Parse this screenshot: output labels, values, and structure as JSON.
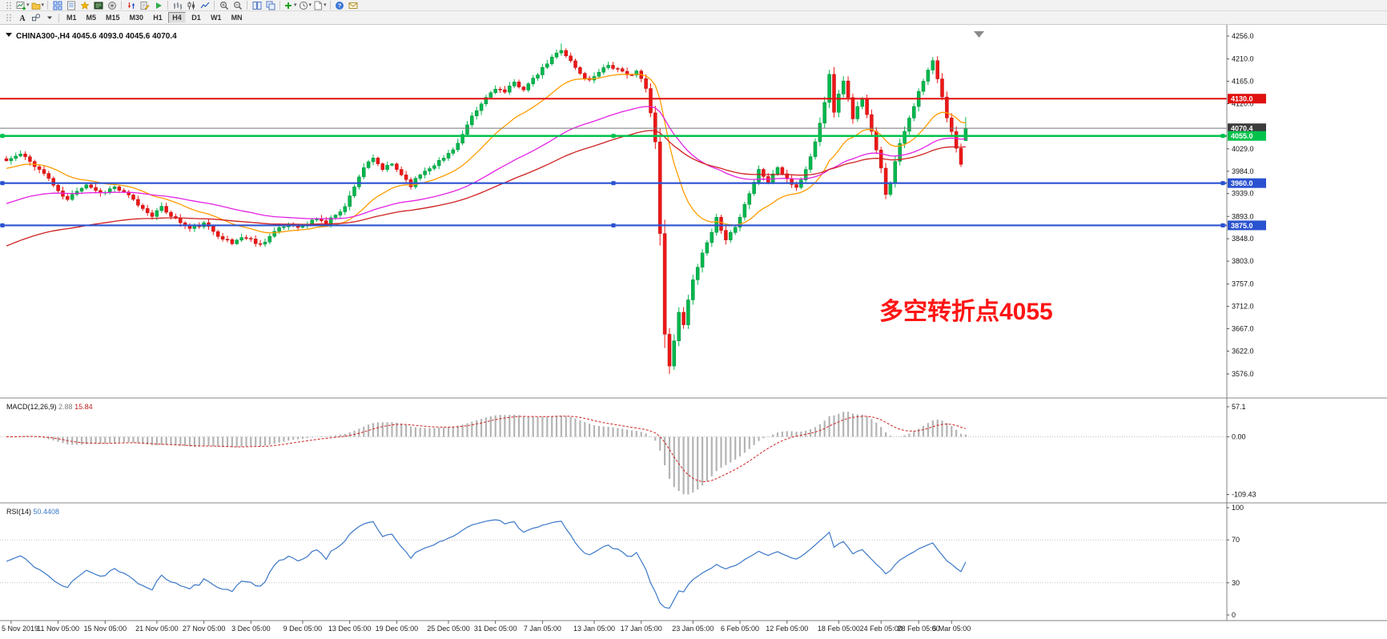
{
  "toolbar_main": {
    "buttons": [
      {
        "name": "toolbar-grip",
        "icon": "grip"
      },
      {
        "name": "new-chart",
        "icon": "chart-plus",
        "dropdown": true
      },
      {
        "name": "profiles",
        "icon": "folder",
        "dropdown": true
      },
      {
        "type": "sep"
      },
      {
        "name": "market-watch",
        "icon": "grid"
      },
      {
        "name": "data-window",
        "icon": "data-window"
      },
      {
        "name": "navigator",
        "icon": "star"
      },
      {
        "name": "terminal",
        "icon": "terminal"
      },
      {
        "name": "strategy-tester",
        "icon": "tester"
      },
      {
        "type": "sep"
      },
      {
        "name": "new-order",
        "icon": "order"
      },
      {
        "name": "metaeditor",
        "icon": "editor"
      },
      {
        "name": "auto-trading",
        "icon": "play"
      },
      {
        "type": "sep"
      },
      {
        "name": "bar-chart-mode",
        "icon": "bars"
      },
      {
        "name": "candlestick-chart-mode",
        "icon": "candles"
      },
      {
        "name": "line-chart-mode",
        "icon": "line"
      },
      {
        "type": "sep"
      },
      {
        "name": "zoom-in",
        "icon": "zoom-in"
      },
      {
        "name": "zoom-out",
        "icon": "zoom-out"
      },
      {
        "type": "sep"
      },
      {
        "name": "tile-windows",
        "icon": "tile"
      },
      {
        "name": "cascade-windows",
        "icon": "cascade"
      },
      {
        "type": "sep"
      },
      {
        "name": "indicators",
        "icon": "plus",
        "dropdown": true
      },
      {
        "name": "periods",
        "icon": "clock",
        "dropdown": true
      },
      {
        "name": "templates",
        "icon": "template",
        "dropdown": true
      },
      {
        "type": "sep"
      },
      {
        "name": "help",
        "icon": "help"
      },
      {
        "name": "feedback",
        "icon": "mail"
      }
    ]
  },
  "toolbar_timeframes": {
    "tools": [
      {
        "name": "toolbar2-grip",
        "icon": "grip"
      },
      {
        "name": "text-label-tool",
        "icon": "text"
      },
      {
        "name": "draw-objects-tool",
        "icon": "shapes"
      },
      {
        "name": "tools-menu",
        "icon": "dropdown"
      }
    ],
    "timeframes": [
      "M1",
      "M5",
      "M15",
      "M30",
      "H1",
      "H4",
      "D1",
      "W1",
      "MN"
    ],
    "active": "H4"
  },
  "chart": {
    "title": {
      "symbol_period": "CHINA300-,H4",
      "ohlc": "4045.6 4093.0 4045.6 4070.4"
    },
    "annotation": {
      "text": "多空转折点4055",
      "color": "#ff1414"
    },
    "levels": [
      {
        "name": "resistance-line",
        "price": 4130.0,
        "label": "4130.0",
        "color": "#e01010",
        "width": 2,
        "badge_bg": "#e01010",
        "handles": false
      },
      {
        "name": "current-price-line",
        "price": 4070.4,
        "label": "4070.4",
        "color": "#787878",
        "width": 1,
        "badge_bg": "#3c3c3c",
        "handles": false
      },
      {
        "name": "pivot-line",
        "price": 4055.0,
        "label": "4055.0",
        "color": "#00c24b",
        "width": 2.4,
        "badge_bg": "#00c24b",
        "handles": true
      },
      {
        "name": "support-line-1",
        "price": 3960.0,
        "label": "3960.0",
        "color": "#2a52d0",
        "width": 2.2,
        "badge_bg": "#2a52d0",
        "handles": true
      },
      {
        "name": "support-line-2",
        "price": 3875.0,
        "label": "3875.0",
        "color": "#2a52d0",
        "width": 2.2,
        "badge_bg": "#2a52d0",
        "handles": true
      }
    ],
    "price_axis": [
      {
        "text": "4256.0",
        "price": 4256.0
      },
      {
        "text": "4210.0",
        "price": 4210.0
      },
      {
        "text": "4165.0",
        "price": 4165.0
      },
      {
        "text": "4120.0",
        "price": 4120.0
      },
      {
        "text": "4029.0",
        "price": 4029.0
      },
      {
        "text": "3984.0",
        "price": 3984.0
      },
      {
        "text": "3939.0",
        "price": 3939.0
      },
      {
        "text": "3893.0",
        "price": 3893.0
      },
      {
        "text": "3848.0",
        "price": 3848.0
      },
      {
        "text": "3803.0",
        "price": 3803.0
      },
      {
        "text": "3757.0",
        "price": 3757.0
      },
      {
        "text": "3712.0",
        "price": 3712.0
      },
      {
        "text": "3667.0",
        "price": 3667.0
      },
      {
        "text": "3622.0",
        "price": 3622.0
      },
      {
        "text": "3576.0",
        "price": 3576.0
      }
    ],
    "time_axis": [
      {
        "text": "5 Nov 2019",
        "candle": 1
      },
      {
        "text": "11 Nov 05:00",
        "candle": 11
      },
      {
        "text": "15 Nov 05:00",
        "candle": 21
      },
      {
        "text": "21 Nov 05:00",
        "candle": 32
      },
      {
        "text": "27 Nov 05:00",
        "candle": 42
      },
      {
        "text": "3 Dec 05:00",
        "candle": 52
      },
      {
        "text": "9 Dec 05:00",
        "candle": 63
      },
      {
        "text": "13 Dec 05:00",
        "candle": 73
      },
      {
        "text": "19 Dec 05:00",
        "candle": 83
      },
      {
        "text": "25 Dec 05:00",
        "candle": 94
      },
      {
        "text": "31 Dec 05:00",
        "candle": 104
      },
      {
        "text": "7 Jan 05:00",
        "candle": 114
      },
      {
        "text": "13 Jan 05:00",
        "candle": 125
      },
      {
        "text": "17 Jan 05:00",
        "candle": 135
      },
      {
        "text": "23 Jan 05:00",
        "candle": 146
      },
      {
        "text": "6 Feb 05:00",
        "candle": 156
      },
      {
        "text": "12 Feb 05:00",
        "candle": 166
      },
      {
        "text": "18 Feb 05:00",
        "candle": 177
      },
      {
        "text": "24 Feb 05:00",
        "candle": 186
      },
      {
        "text": "28 Feb 05:00",
        "candle": 194
      },
      {
        "text": "5 Mar 05:00",
        "candle": 201
      }
    ]
  },
  "macd": {
    "label": "MACD(12,26,9)",
    "value_main": "2.88",
    "value_signal": "15.84",
    "fast": 12,
    "slow": 26,
    "signal": 9,
    "min_value": -109.43,
    "histogram_color": "#b4b4b4",
    "signal_color": "#d02020",
    "axis": [
      {
        "text": "57.1",
        "value": 57.1
      },
      {
        "text": "0.00",
        "value": 0
      },
      {
        "text": "-109.43",
        "value": -109.43
      }
    ]
  },
  "rsi": {
    "label": "RSI(14)",
    "value": "50.4408",
    "period": 14,
    "color": "#3c78c8",
    "levels": [
      30,
      70
    ],
    "axis": [
      {
        "text": "100",
        "value": 100
      },
      {
        "text": "70",
        "value": 70
      },
      {
        "text": "30",
        "value": 30
      },
      {
        "text": "0",
        "value": 0
      }
    ]
  },
  "chart_data": {
    "type": "candlestick",
    "symbol": "CHINA300-",
    "timeframe": "H4",
    "candle_count": 205,
    "ylim": [
      3576.0,
      4256.0
    ],
    "noise_seed": 11,
    "last_candle": {
      "o": 4045.6,
      "h": 4093.0,
      "l": 4045.6,
      "c": 4070.4
    },
    "extremes": {
      "highest": {
        "index": 118,
        "price": 4241.0
      },
      "lowest": {
        "index": 141,
        "price": 3576.0
      }
    },
    "colors": {
      "up": "#00b84d",
      "up_stroke": "#00893a",
      "down": "#ee1717",
      "down_stroke": "#b80f0f"
    },
    "horizontal_levels": [
      4130.0,
      4070.4,
      4055.0,
      3960.0,
      3875.0
    ],
    "moving_averages": [
      {
        "name": "fast-ma-orange",
        "period": 20,
        "seed": 3988,
        "color": "#ff9c00"
      },
      {
        "name": "mid-ma-magenta",
        "period": 60,
        "seed": 3916,
        "color": "#e322e3"
      },
      {
        "name": "slow-ma-red",
        "period": 95,
        "seed": 3830,
        "color": "#d02020"
      }
    ],
    "close_path": [
      [
        0,
        4005
      ],
      [
        3,
        4018
      ],
      [
        6,
        3996
      ],
      [
        9,
        3970
      ],
      [
        11,
        3942
      ],
      [
        13,
        3926
      ],
      [
        15,
        3946
      ],
      [
        17,
        3958
      ],
      [
        20,
        3940
      ],
      [
        23,
        3952
      ],
      [
        26,
        3934
      ],
      [
        29,
        3908
      ],
      [
        31,
        3896
      ],
      [
        33,
        3910
      ],
      [
        36,
        3888
      ],
      [
        39,
        3868
      ],
      [
        42,
        3878
      ],
      [
        45,
        3856
      ],
      [
        48,
        3838
      ],
      [
        50,
        3852
      ],
      [
        52,
        3846
      ],
      [
        54,
        3836
      ],
      [
        57,
        3862
      ],
      [
        60,
        3878
      ],
      [
        63,
        3872
      ],
      [
        66,
        3890
      ],
      [
        68,
        3878
      ],
      [
        70,
        3898
      ],
      [
        72,
        3912
      ],
      [
        74,
        3955
      ],
      [
        76,
        3992
      ],
      [
        78,
        4008
      ],
      [
        80,
        3988
      ],
      [
        82,
        3998
      ],
      [
        84,
        3978
      ],
      [
        86,
        3956
      ],
      [
        88,
        3978
      ],
      [
        90,
        3992
      ],
      [
        93,
        4010
      ],
      [
        96,
        4040
      ],
      [
        99,
        4092
      ],
      [
        102,
        4132
      ],
      [
        104,
        4152
      ],
      [
        106,
        4142
      ],
      [
        108,
        4162
      ],
      [
        110,
        4150
      ],
      [
        112,
        4168
      ],
      [
        114,
        4190
      ],
      [
        116,
        4212
      ],
      [
        118,
        4230
      ],
      [
        120,
        4205
      ],
      [
        122,
        4180
      ],
      [
        124,
        4166
      ],
      [
        126,
        4186
      ],
      [
        128,
        4198
      ],
      [
        130,
        4188
      ],
      [
        132,
        4176
      ],
      [
        134,
        4186
      ],
      [
        136,
        4150
      ],
      [
        137,
        4100
      ],
      [
        138,
        4042
      ],
      [
        139,
        3862
      ],
      [
        140,
        3656
      ],
      [
        141,
        3592
      ],
      [
        142,
        3645
      ],
      [
        143,
        3698
      ],
      [
        144,
        3678
      ],
      [
        145,
        3728
      ],
      [
        146,
        3762
      ],
      [
        148,
        3818
      ],
      [
        150,
        3858
      ],
      [
        151,
        3888
      ],
      [
        153,
        3848
      ],
      [
        155,
        3872
      ],
      [
        156,
        3892
      ],
      [
        158,
        3942
      ],
      [
        160,
        3988
      ],
      [
        162,
        3962
      ],
      [
        164,
        3992
      ],
      [
        166,
        3968
      ],
      [
        168,
        3948
      ],
      [
        170,
        3988
      ],
      [
        172,
        4042
      ],
      [
        174,
        4122
      ],
      [
        175,
        4178
      ],
      [
        176,
        4106
      ],
      [
        177,
        4142
      ],
      [
        178,
        4168
      ],
      [
        180,
        4092
      ],
      [
        182,
        4132
      ],
      [
        184,
        4062
      ],
      [
        186,
        3988
      ],
      [
        187,
        3940
      ],
      [
        188,
        3962
      ],
      [
        190,
        4042
      ],
      [
        192,
        4092
      ],
      [
        194,
        4142
      ],
      [
        196,
        4186
      ],
      [
        197,
        4206
      ],
      [
        198,
        4168
      ],
      [
        199,
        4132
      ],
      [
        200,
        4092
      ],
      [
        201,
        4062
      ],
      [
        202,
        4032
      ],
      [
        203,
        4000
      ],
      [
        204,
        4070.4
      ]
    ]
  }
}
